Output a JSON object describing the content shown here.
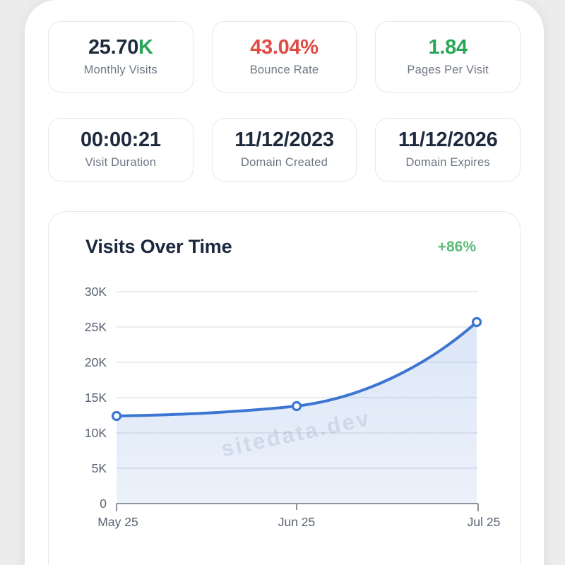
{
  "stats_row1": [
    {
      "value": "25.70",
      "suffix": "K",
      "label": "Monthly Visits"
    },
    {
      "value": "43.04%",
      "suffix": "",
      "label": "Bounce Rate"
    },
    {
      "value": "1.84",
      "suffix": "",
      "label": "Pages Per Visit"
    }
  ],
  "stats_row2": [
    {
      "value": "00:00:21",
      "label": "Visit Duration"
    },
    {
      "value": "11/12/2023",
      "label": "Domain Created"
    },
    {
      "value": "11/12/2026",
      "label": "Domain Expires"
    }
  ],
  "chart": {
    "title": "Visits Over Time",
    "change_badge": "+86%",
    "watermark": "sitedata.dev"
  },
  "chart_data": {
    "type": "area",
    "x": [
      "May 25",
      "Jun 25",
      "Jul 25"
    ],
    "values": [
      12400,
      13800,
      25700
    ],
    "title": "Visits Over Time",
    "xlabel": "",
    "ylabel": "",
    "ylim": [
      0,
      30000
    ],
    "yticks": [
      {
        "value": 30000,
        "label": "30K"
      },
      {
        "value": 25000,
        "label": "25K"
      },
      {
        "value": 20000,
        "label": "20K"
      },
      {
        "value": 15000,
        "label": "15K"
      },
      {
        "value": 10000,
        "label": "10K"
      },
      {
        "value": 5000,
        "label": "5K"
      },
      {
        "value": 0,
        "label": "0"
      }
    ],
    "grid": true,
    "legend": false,
    "marker": "hollow-circle"
  },
  "colors": {
    "value_navy": "#1e2a3d",
    "bounce_red": "#e04b44",
    "metric_green": "#27a755",
    "badge_green": "#5cba77",
    "line_blue": "#3c76d2",
    "area_fill": "#dfe6f8",
    "label_gray": "#6e7684",
    "panel_bg": "#ffffff",
    "page_bg": "#ececec"
  }
}
